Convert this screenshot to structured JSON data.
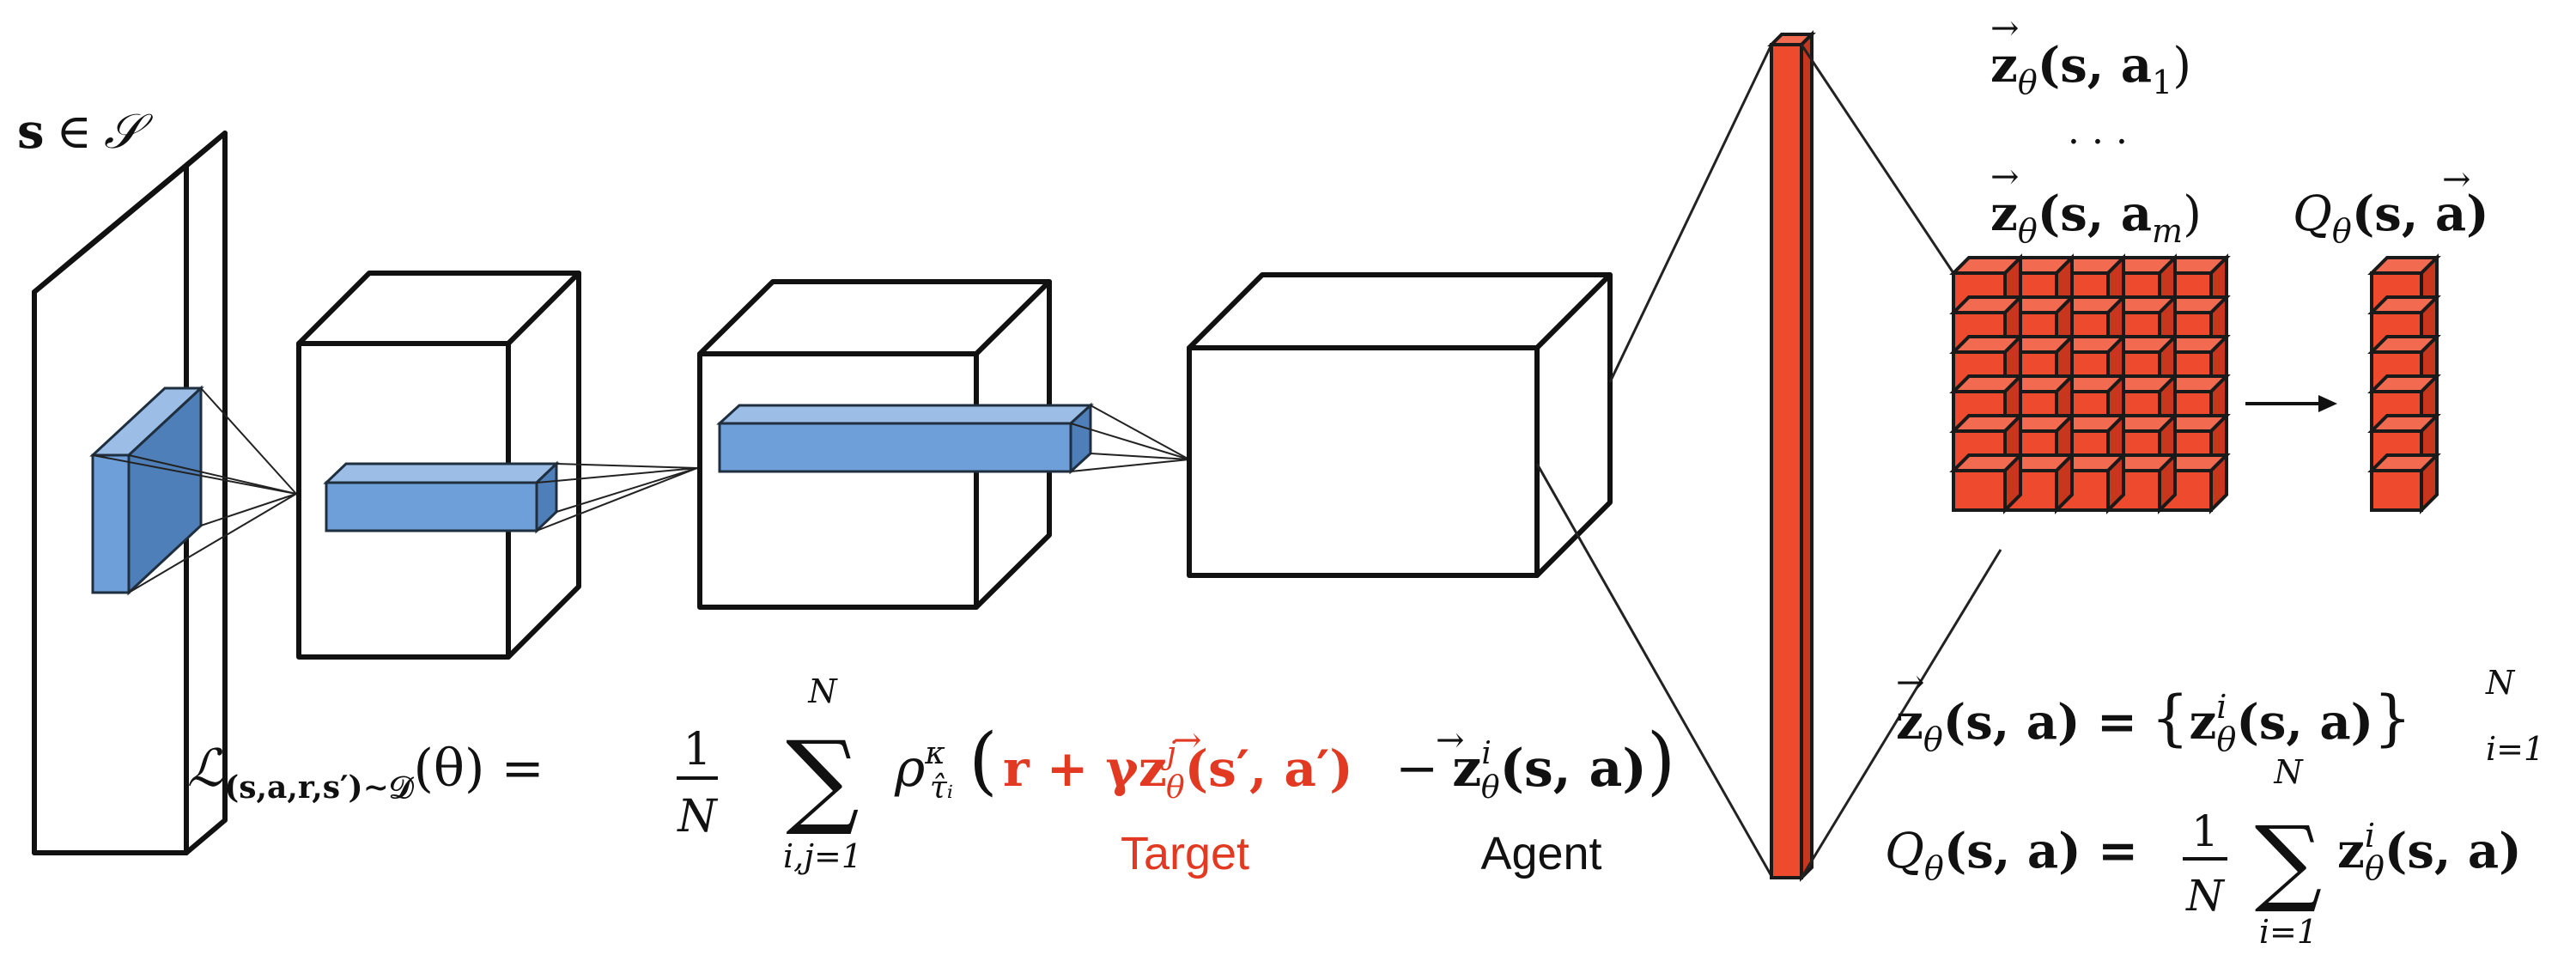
{
  "colors": {
    "feature_blue": "#6f9fd8",
    "output_red": "#ee4a2e",
    "target_red": "#e23a22",
    "ink": "#111111"
  },
  "input_label": {
    "s": "s",
    "in": "∈",
    "set": "𝒮"
  },
  "z_top": {
    "z": "z",
    "theta": "θ",
    "args": "(s, a",
    "sub": "1",
    "close": ")"
  },
  "z_dots": "· · ·",
  "z_bottom": {
    "z": "z",
    "theta": "θ",
    "args": "(s, a",
    "sub": "m",
    "close": ")"
  },
  "q_label": {
    "q": "Q",
    "theta": "θ",
    "args": "(s, a)"
  },
  "z_def": {
    "lhs_z": "z",
    "lhs_theta": "θ",
    "lhs_args": "(s, a) =",
    "brace_open": "{",
    "z": "z",
    "sup": "i",
    "theta": "θ",
    "args": "(s, a)",
    "brace_close": "}",
    "sup_N": "N",
    "sub_i": "i=1"
  },
  "q_def": {
    "q": "Q",
    "theta": "θ",
    "args": "(s, a) =",
    "frac_num": "1",
    "frac_den": "N",
    "sum": "∑",
    "sum_top": "N",
    "sum_bot": "i=1",
    "z": "z",
    "sup": "i",
    "theta2": "θ",
    "args2": "(s, a)"
  },
  "loss": {
    "L": "ℒ",
    "L_sub": "(s,a,r,s′)∼𝒟",
    "L_arg": "(θ) =",
    "frac_num": "1",
    "frac_den": "N",
    "sum": "∑",
    "sum_top": "N",
    "sum_bot": "i,j=1",
    "rho": "ρ",
    "rho_sup": "κ",
    "rho_sub": "τ̂ᵢ",
    "paren_open": "(",
    "target_r": "r + γ",
    "target_z": "z",
    "target_sup": "j",
    "target_theta": "θ",
    "target_args": "(s′, a′)",
    "minus": "−",
    "agent_z": "z",
    "agent_sup": "i",
    "agent_theta": "θ",
    "agent_args": "(s, a)",
    "paren_close": ")"
  },
  "target_label": "Target",
  "agent_label": "Agent"
}
